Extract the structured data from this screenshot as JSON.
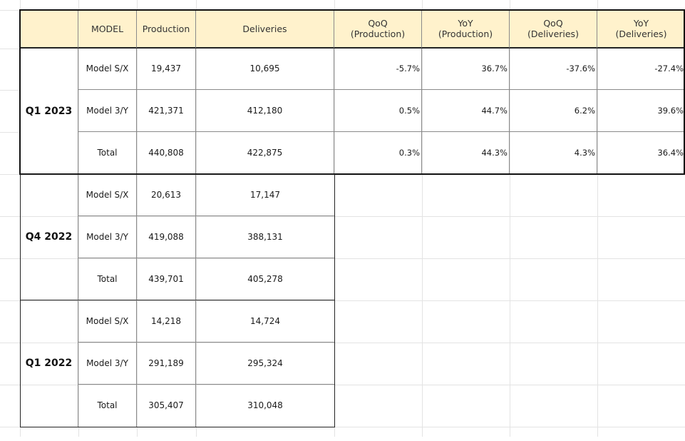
{
  "headers": [
    "MODEL",
    "Production",
    "Deliveries",
    "QoQ\n(Production)",
    "YoY\n(Production)",
    "QoQ\n(Deliveries)",
    "YoY\n(Deliveries)"
  ],
  "quarters": [
    {
      "label": "Q1 2023",
      "rows": [
        {
          "model": "Model S/X",
          "production": "19,437",
          "deliveries": "10,695",
          "qoq_prod": "-5.7%",
          "yoy_prod": "36.7%",
          "qoq_del": "-37.6%",
          "yoy_del": "-27.4%"
        },
        {
          "model": "Model 3/Y",
          "production": "421,371",
          "deliveries": "412,180",
          "qoq_prod": "0.5%",
          "yoy_prod": "44.7%",
          "qoq_del": "6.2%",
          "yoy_del": "39.6%"
        },
        {
          "model": "Total",
          "production": "440,808",
          "deliveries": "422,875",
          "qoq_prod": "0.3%",
          "yoy_prod": "44.3%",
          "qoq_del": "4.3%",
          "yoy_del": "36.4%"
        }
      ]
    },
    {
      "label": "Q4 2022",
      "rows": [
        {
          "model": "Model S/X",
          "production": "20,613",
          "deliveries": "17,147"
        },
        {
          "model": "Model 3/Y",
          "production": "419,088",
          "deliveries": "388,131"
        },
        {
          "model": "Total",
          "production": "439,701",
          "deliveries": "405,278"
        }
      ]
    },
    {
      "label": "Q1 2022",
      "rows": [
        {
          "model": "Model S/X",
          "production": "14,218",
          "deliveries": "14,724"
        },
        {
          "model": "Model 3/Y",
          "production": "291,189",
          "deliveries": "295,324"
        },
        {
          "model": "Total",
          "production": "305,407",
          "deliveries": "310,048"
        }
      ]
    }
  ],
  "colors": {
    "header_bg": "#fff2cc",
    "grid": "#e3e3e3",
    "border": "#222222"
  }
}
